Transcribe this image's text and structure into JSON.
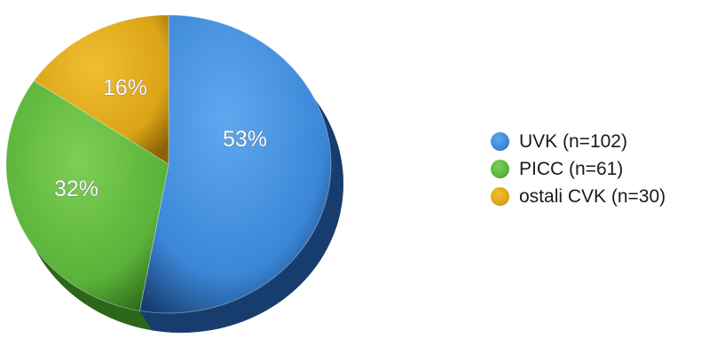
{
  "chart_data": {
    "type": "pie",
    "title": "",
    "slices": [
      {
        "label": "UVK (n=102)",
        "value": 102,
        "percent_label": "53%",
        "color": "#3b86d6",
        "dark": "#173d6e",
        "light": "#5fa8f0"
      },
      {
        "label": "PICC (n=61)",
        "value": 61,
        "percent_label": "32%",
        "color": "#5ab239",
        "dark": "#2c6619",
        "light": "#7dcf55"
      },
      {
        "label": "ostali CVK (n=30)",
        "value": 30,
        "percent_label": "16%",
        "color": "#dba316",
        "dark": "#8a6208",
        "light": "#f0be32"
      }
    ],
    "legend_position": "right",
    "style": "3d"
  }
}
